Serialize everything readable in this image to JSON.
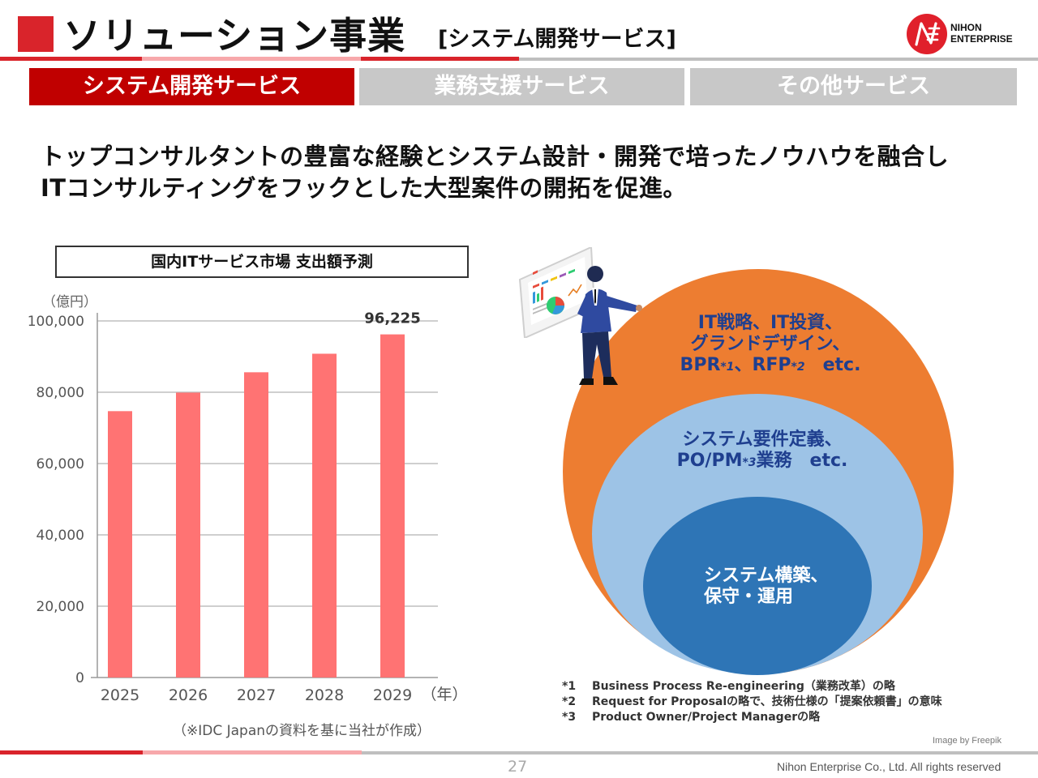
{
  "header": {
    "title": "ソリューション事業",
    "subtitle": "[システム開発サービス]",
    "logo_line1": "NIHON",
    "logo_line2": "ENTERPRISE",
    "brand_color": "#d9242b"
  },
  "tabs": [
    {
      "label": "システム開発サービス",
      "active": true
    },
    {
      "label": "業務支援サービス",
      "active": false
    },
    {
      "label": "その他サービス",
      "active": false
    }
  ],
  "lead": {
    "line1": "トップコンサルタントの豊富な経験とシステム設計・開発で培ったノウハウを融合し",
    "line2": "ITコンサルティングをフックとした大型案件の開拓を促進。"
  },
  "chart": {
    "box_title": "国内ITサービス市場 支出額予測",
    "unit_label": "（億円）",
    "x_unit_label": "（年）",
    "source": "（※IDC Japanの資料を基に当社が作成）"
  },
  "chart_data": {
    "type": "bar",
    "title": "国内ITサービス市場 支出額予測",
    "categories": [
      "2025",
      "2026",
      "2027",
      "2028",
      "2029"
    ],
    "values": [
      74700,
      79900,
      85600,
      90800,
      96225
    ],
    "data_labels": [
      {
        "category": "2029",
        "text": "96,225"
      }
    ],
    "yticks": [
      "0",
      "20,000",
      "40,000",
      "60,000",
      "80,000",
      "100,000"
    ],
    "ylim": [
      0,
      100000
    ],
    "ylabel": "（億円）",
    "xlabel": "（年）",
    "bar_color": "#ff7373",
    "grid": true
  },
  "circles": {
    "outer": {
      "line1": "IT戦略、IT投資、",
      "line2": "グランドデザイン、",
      "line3_a": "BPR",
      "line3_sup1": "*1",
      "line3_b": "、RFP",
      "line3_sup2": "*2",
      "line3_c": "　etc.",
      "color": "#ed7d31"
    },
    "middle": {
      "line1": "システム要件定義、",
      "line2_a": "PO/PM",
      "line2_sup": "*3",
      "line2_b": "業務　etc.",
      "color": "#9dc3e6"
    },
    "inner": {
      "line1": "システム構築、",
      "line2": "保守・運用",
      "color": "#2e75b6"
    }
  },
  "footnotes": [
    {
      "num": "*1",
      "text": "Business Process Re-engineering（業務改革）の略"
    },
    {
      "num": "*2",
      "text": "Request for Proposalの略で、技術仕様の「提案依頼書」の意味"
    },
    {
      "num": "*3",
      "text": "Product Owner/Project Managerの略"
    }
  ],
  "credit": "Image by Freepik",
  "footer": {
    "page": "27",
    "copyright": "Nihon Enterprise Co., Ltd. All rights reserved"
  }
}
